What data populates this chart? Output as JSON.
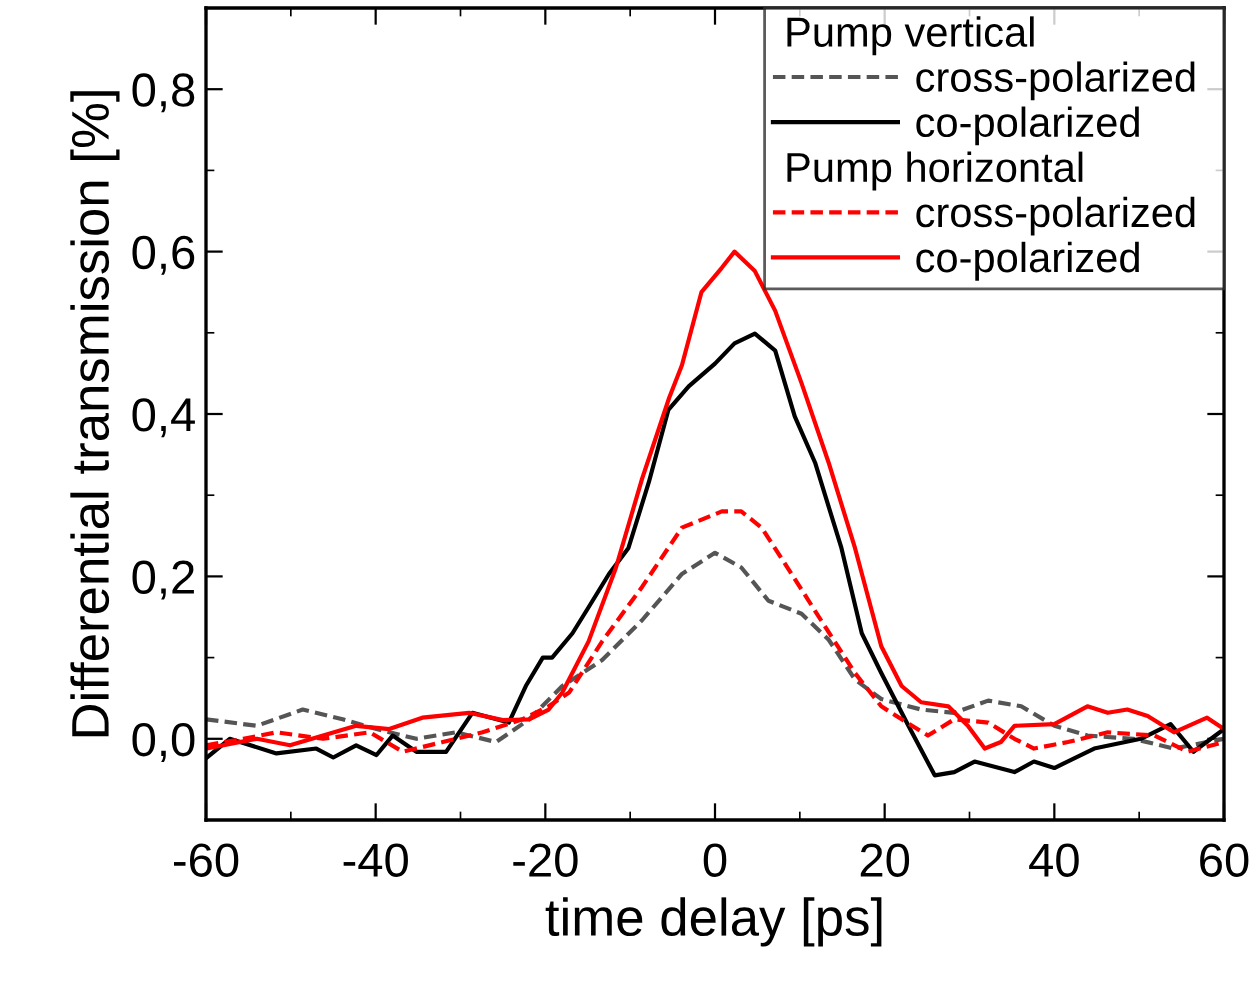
{
  "chart_data": {
    "type": "line",
    "xlabel": "time delay [ps]",
    "ylabel": "Differential transmission [%]",
    "xlim": [
      -60,
      60
    ],
    "xticks": [
      -60,
      -40,
      -20,
      0,
      20,
      40,
      60
    ],
    "ylim": [
      -0.1,
      0.9
    ],
    "yticks": [
      {
        "value": 0.0,
        "label": "0,0"
      },
      {
        "value": 0.2,
        "label": "0,2"
      },
      {
        "value": 0.4,
        "label": "0,4"
      },
      {
        "value": 0.6,
        "label": "0,6"
      },
      {
        "value": 0.8,
        "label": "0,8"
      }
    ],
    "annotations": [
      "Pump vertical",
      "Pump horizontal"
    ],
    "legend": "top right",
    "grid": false,
    "marker": "none",
    "series": [
      {
        "name": "cross-polarized",
        "color": "#555555",
        "line_style": "dashed",
        "x": [
          -60,
          -54,
          -48.6,
          -43.9,
          -39.9,
          -35.2,
          -30.5,
          -25.8,
          -21.9,
          -18,
          -13.3,
          -8.6,
          -3.9,
          0,
          3.1,
          6.3,
          10.2,
          13.4,
          16.5,
          19.6,
          24.3,
          28.2,
          32.2,
          36.1,
          40,
          43.9,
          49.3,
          54.1,
          60
        ],
        "values": [
          0.024,
          0.016,
          0.036,
          0.024,
          0.012,
          0,
          0.008,
          -0.004,
          0.024,
          0.065,
          0.097,
          0.146,
          0.203,
          0.229,
          0.211,
          0.17,
          0.154,
          0.122,
          0.073,
          0.049,
          0.036,
          0.032,
          0.047,
          0.04,
          0.016,
          0.004,
          0,
          -0.012,
          0
        ]
      },
      {
        "name": "co-polarized",
        "color": "#000000",
        "line_style": "solid",
        "x": [
          -60,
          -57.2,
          -51.7,
          -47,
          -45,
          -42.3,
          -39.9,
          -38,
          -35.2,
          -31.7,
          -28.6,
          -24.3,
          -22.3,
          -20.3,
          -19.2,
          -16.8,
          -14.9,
          -12.5,
          -10.2,
          -7.8,
          -5.5,
          -3.1,
          0,
          2.3,
          4.7,
          7.1,
          9.4,
          11.8,
          14.9,
          17.3,
          19.6,
          22.8,
          25.9,
          28.2,
          30.6,
          35.3,
          37.6,
          40,
          44.7,
          50.2,
          53.7,
          56.4,
          60
        ],
        "values": [
          -0.024,
          0,
          -0.018,
          -0.012,
          -0.023,
          -0.008,
          -0.02,
          0.004,
          -0.016,
          -0.016,
          0.032,
          0.02,
          0.065,
          0.1,
          0.1,
          0.13,
          0.162,
          0.203,
          0.235,
          0.316,
          0.405,
          0.434,
          0.462,
          0.487,
          0.499,
          0.478,
          0.397,
          0.34,
          0.235,
          0.13,
          0.081,
          0.016,
          -0.045,
          -0.041,
          -0.028,
          -0.041,
          -0.028,
          -0.036,
          -0.012,
          0,
          0.018,
          -0.016,
          0.012
        ]
      },
      {
        "name": "cross-polarized",
        "color": "#ff0000",
        "line_style": "dashed",
        "x": [
          -60,
          -55.6,
          -51.7,
          -46.2,
          -40.7,
          -36.8,
          -32.1,
          -27.4,
          -22.7,
          -19.6,
          -17.2,
          -13.3,
          -8.6,
          -3.9,
          0.8,
          3.1,
          5.5,
          8.6,
          12.5,
          16.5,
          19.6,
          22,
          25.1,
          28.2,
          32.2,
          35.3,
          37.6,
          41.6,
          46.3,
          51.8,
          55.7,
          60
        ],
        "values": [
          -0.008,
          0,
          0.008,
          0,
          0.008,
          -0.016,
          -0.004,
          0.008,
          0.024,
          0.04,
          0.057,
          0.12,
          0.187,
          0.26,
          0.28,
          0.28,
          0.26,
          0.21,
          0.146,
          0.081,
          0.04,
          0.024,
          0.004,
          0.024,
          0.02,
          0,
          -0.012,
          -0.004,
          0.008,
          0.004,
          -0.016,
          -0.004
        ]
      },
      {
        "name": "co-polarized",
        "color": "#ff0000",
        "line_style": "solid",
        "x": [
          -60,
          -54,
          -50.1,
          -46.2,
          -42.3,
          -38.4,
          -34.5,
          -29,
          -25,
          -21.9,
          -19.6,
          -18,
          -14.9,
          -11.7,
          -8.6,
          -5.4,
          -3.9,
          -1.6,
          0.8,
          2.3,
          4.7,
          7.1,
          10.2,
          13.4,
          16.5,
          19.6,
          22,
          24.3,
          27.5,
          29.8,
          31.8,
          33.7,
          35.3,
          40,
          43.9,
          46.3,
          48.6,
          51,
          54.1,
          58,
          60
        ],
        "values": [
          -0.012,
          0,
          -0.008,
          0.004,
          0.016,
          0.012,
          0.026,
          0.032,
          0.023,
          0.024,
          0.036,
          0.057,
          0.12,
          0.21,
          0.32,
          0.42,
          0.46,
          0.55,
          0.58,
          0.6,
          0.576,
          0.527,
          0.438,
          0.34,
          0.235,
          0.114,
          0.065,
          0.045,
          0.04,
          0.016,
          -0.012,
          -0.004,
          0.016,
          0.018,
          0.04,
          0.032,
          0.036,
          0.028,
          0.008,
          0.026,
          0.012
        ]
      }
    ]
  }
}
